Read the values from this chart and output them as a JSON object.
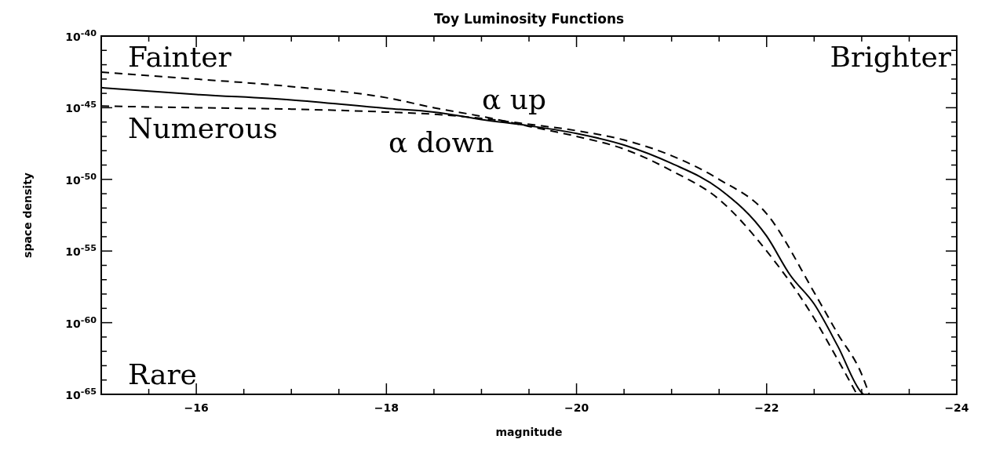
{
  "chart_data": {
    "type": "line",
    "title": "Toy Luminosity Functions",
    "xlabel": "magnitude",
    "ylabel": "space density",
    "log": "y",
    "xlim": [
      -15,
      -24
    ],
    "ylim": [
      1e-65,
      1e-40
    ],
    "xticks": [
      {
        "value": -15.5,
        "label": null
      },
      -16,
      {
        "value": -16.5,
        "label": null
      },
      {
        "value": -17,
        "label": null
      },
      {
        "value": -17.5,
        "label": null
      },
      -18,
      {
        "value": -18.5,
        "label": null
      },
      {
        "value": -19,
        "label": null
      },
      {
        "value": -19.5,
        "label": null
      },
      -20,
      {
        "value": -20.5,
        "label": null
      },
      {
        "value": -21,
        "label": null
      },
      {
        "value": -21.5,
        "label": null
      },
      -22,
      {
        "value": -22.5,
        "label": null
      },
      {
        "value": -23,
        "label": null
      },
      {
        "value": -23.5,
        "label": null
      },
      -24
    ],
    "yticks": [
      {
        "value": 1e-65,
        "label": "10$^{-65}$"
      },
      {
        "value": 1e-64,
        "label": null
      },
      {
        "value": 1e-63,
        "label": null
      },
      {
        "value": 1e-62,
        "label": null
      },
      {
        "value": 1e-61,
        "label": null
      },
      {
        "value": 1e-60,
        "label": "10$^{-60}$"
      },
      {
        "value": 1e-59,
        "label": null
      },
      {
        "value": 1e-58,
        "label": null
      },
      {
        "value": 1e-57,
        "label": null
      },
      {
        "value": 1e-56,
        "label": null
      },
      {
        "value": 1e-55,
        "label": "10$^{-55}$"
      },
      {
        "value": 1e-54,
        "label": null
      },
      {
        "value": 1e-53,
        "label": null
      },
      {
        "value": 1e-52,
        "label": null
      },
      {
        "value": 1e-51,
        "label": null
      },
      {
        "value": 1e-50,
        "label": "10$^{-50}$"
      },
      {
        "value": 1e-49,
        "label": null
      },
      {
        "value": 1e-48,
        "label": null
      },
      {
        "value": 1e-47,
        "label": null
      },
      {
        "value": 1e-46,
        "label": null
      },
      {
        "value": 1e-45,
        "label": "10$^{-45}$"
      },
      {
        "value": 1e-44,
        "label": null
      },
      {
        "value": 1e-43,
        "label": null
      },
      {
        "value": 1e-42,
        "label": null
      },
      {
        "value": 1e-41,
        "label": null
      },
      {
        "value": 1e-40,
        "label": "10$^{-40}$"
      }
    ],
    "grid": false,
    "series": [
      {
        "color": "#000000",
        "line_style": "solid",
        "x": [
          -15,
          -16,
          -17,
          -18,
          -18.5,
          -19,
          -19.5,
          -20,
          -20.5,
          -21,
          -21.5,
          -22,
          -22.25,
          -22.5,
          -22.75,
          -23,
          -23.02
        ],
        "values": [
          2.5e-44,
          8.5e-45,
          3.5e-45,
          9e-46,
          5e-46,
          1.5e-46,
          5.5e-47,
          1.6e-47,
          2.5e-48,
          1.3e-49,
          2.2e-51,
          1.1e-54,
          2e-57,
          2e-59,
          2.2e-62,
          1.3e-65,
          1e-65
        ]
      },
      {
        "color": "#000000",
        "line_style": "dashed",
        "x": [
          -15,
          -16,
          -17,
          -18,
          -18.5,
          -19,
          -19.5,
          -20,
          -20.5,
          -21,
          -21.5,
          -22,
          -22.5,
          -22.75,
          -22.95
        ],
        "values": [
          3e-43,
          1e-43,
          3e-44,
          5e-45,
          1e-45,
          2.5e-46,
          5e-47,
          1e-47,
          1.3e-48,
          4e-50,
          4e-52,
          1e-55,
          2e-60,
          2.5e-63,
          1e-65
        ]
      },
      {
        "color": "#000000",
        "line_style": "dashed",
        "x": [
          -15,
          -16,
          -17,
          -18,
          -18.5,
          -19,
          -19.5,
          -20,
          -20.5,
          -21,
          -21.5,
          -22,
          -22.5,
          -22.75,
          -23,
          -23.08
        ],
        "values": [
          1.3e-45,
          1e-45,
          8e-46,
          5e-46,
          3.5e-46,
          1.8e-46,
          7e-47,
          2.5e-47,
          5.6e-48,
          4.5e-49,
          1e-50,
          4e-53,
          1.3e-58,
          1.6e-61,
          2.5e-64,
          1e-65
        ]
      }
    ],
    "annotations": [
      "Fainter",
      "Brighter",
      "Numerous",
      "Rare",
      "α up",
      "α down"
    ]
  }
}
